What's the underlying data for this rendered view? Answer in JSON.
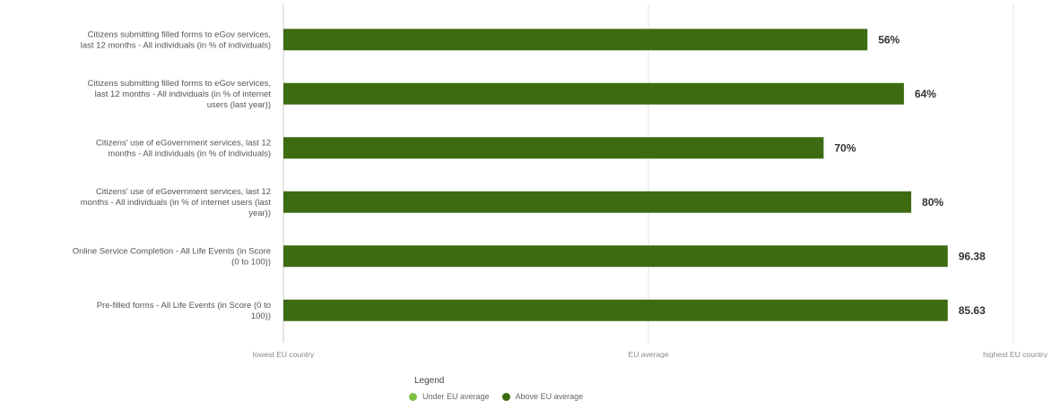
{
  "colors": {
    "above": "#3d6b12",
    "under": "#7cc243",
    "grid": "#e6e6e6",
    "axis": "#cccccc"
  },
  "chart_data": {
    "type": "bar",
    "orientation": "horizontal",
    "title": "",
    "xlabel": "",
    "ylabel": "",
    "xlim": [
      0,
      100
    ],
    "x_axis_labels": [
      "lowest EU country",
      "EU average",
      "highest EU country"
    ],
    "grid": true,
    "legend_position": "bottom-center",
    "categories": [
      [
        "Citizens submitting filled forms to eGov services,",
        "last 12 months - All individuals (in % of individuals)"
      ],
      [
        "Citizens submitting filled forms to eGov services,",
        "last 12 months - All individuals (in % of internet",
        "users (last year))"
      ],
      [
        "Citizens' use of eGovernment services, last 12",
        "months - All individuals (in % of individuals)"
      ],
      [
        "Citizens' use of eGovernment services, last 12",
        "months - All individuals (in % of internet users (last",
        "year))"
      ],
      [
        "Online Service Completion - All Life Events (in Score",
        "(0 to 100))"
      ],
      [
        "Pre-filled forms - All Life Events (in Score (0 to",
        "100))"
      ]
    ],
    "values": [
      80,
      85,
      74,
      86,
      91,
      91
    ],
    "value_labels": [
      "56%",
      "64%",
      "70%",
      "80%",
      "96.38",
      "85.63"
    ],
    "status": [
      "above",
      "above",
      "above",
      "above",
      "above",
      "above"
    ]
  },
  "legend": {
    "title": "Legend",
    "items": [
      {
        "label": "Under EU average",
        "color": "#7cc243"
      },
      {
        "label": "Above EU average",
        "color": "#3d6b12"
      }
    ]
  }
}
